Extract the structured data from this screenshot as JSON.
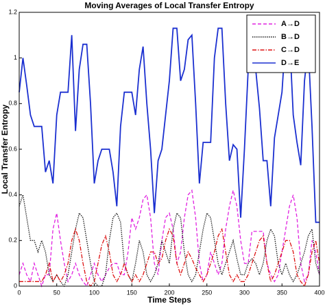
{
  "chart_data": {
    "type": "line",
    "title": "Moving Averages of Local Transfer Entropy",
    "xlabel": "Time Steps",
    "ylabel": "Local Transfer Entropy",
    "x": [
      0,
      5,
      10,
      15,
      20,
      25,
      30,
      35,
      40,
      45,
      50,
      55,
      60,
      65,
      70,
      75,
      80,
      85,
      90,
      95,
      100,
      105,
      110,
      115,
      120,
      125,
      130,
      135,
      140,
      145,
      150,
      155,
      160,
      165,
      170,
      175,
      180,
      185,
      190,
      195,
      200,
      205,
      210,
      215,
      220,
      225,
      230,
      235,
      240,
      245,
      250,
      255,
      260,
      265,
      270,
      275,
      280,
      285,
      290,
      295,
      300,
      305,
      310,
      315,
      320,
      325,
      330,
      335,
      340,
      345,
      350,
      355,
      360,
      365,
      370,
      375,
      380,
      385,
      390,
      395,
      400
    ],
    "series": [
      {
        "name": "A→D",
        "color": "#e020e0",
        "dash": "dashed",
        "values": [
          0.05,
          0.1,
          0.05,
          0.02,
          0.1,
          0.05,
          0,
          0.05,
          0.05,
          0.25,
          0.32,
          0.2,
          0.1,
          0.02,
          0.05,
          0.1,
          0.05,
          0.02,
          0,
          0.05,
          0.1,
          0.05,
          0.02,
          0.05,
          0.08,
          0.1,
          0.1,
          0.05,
          0.05,
          0.15,
          0.3,
          0.25,
          0.3,
          0.38,
          0.4,
          0.3,
          0.1,
          0.05,
          0.2,
          0.3,
          0.32,
          0.25,
          0.1,
          0.15,
          0.3,
          0.4,
          0.42,
          0.3,
          0.1,
          0.02,
          0.05,
          0.15,
          0.1,
          0.05,
          0.1,
          0.25,
          0.35,
          0.42,
          0.35,
          0.2,
          0.1,
          0.1,
          0.24,
          0.24,
          0.24,
          0.24,
          0.1,
          0.05,
          0.02,
          0.05,
          0.15,
          0.25,
          0.35,
          0.4,
          0.3,
          0.1,
          0.02,
          0.05,
          0.2,
          0.15,
          0.05
        ]
      },
      {
        "name": "B→D",
        "color": "#111111",
        "dash": "dotted",
        "values": [
          0.35,
          0.4,
          0.3,
          0.2,
          0.2,
          0.15,
          0.2,
          0.15,
          0.05,
          0.02,
          0.05,
          0.02,
          0,
          0.05,
          0.15,
          0.25,
          0.32,
          0.3,
          0.2,
          0.1,
          0.02,
          0,
          0,
          0.05,
          0.2,
          0.3,
          0.32,
          0.28,
          0.1,
          0.05,
          0.02,
          0.1,
          0.2,
          0.15,
          0.05,
          0.02,
          0.05,
          0.1,
          0.2,
          0.15,
          0.1,
          0.25,
          0.32,
          0.3,
          0.15,
          0.05,
          0.02,
          0.05,
          0.15,
          0.25,
          0.32,
          0.3,
          0.2,
          0.1,
          0.05,
          0.1,
          0.15,
          0.2,
          0.12,
          0.05,
          0.05,
          0.1,
          0.12,
          0.1,
          0.05,
          0.1,
          0.2,
          0.25,
          0.22,
          0.1,
          0.05,
          0.1,
          0.05,
          0.02,
          0.05,
          0.1,
          0.15,
          0.22,
          0.25,
          0.1,
          0.05
        ]
      },
      {
        "name": "C→D",
        "color": "#dd1111",
        "dash": "dashdot",
        "values": [
          0.02,
          0.02,
          0.02,
          0.02,
          0.02,
          0.02,
          0.02,
          0.05,
          0.1,
          0.02,
          0.05,
          0.02,
          0.05,
          0.1,
          0.2,
          0.25,
          0.2,
          0.1,
          0.02,
          0,
          0.02,
          0.1,
          0.18,
          0.22,
          0.15,
          0.05,
          0.02,
          0.05,
          0.1,
          0.05,
          0.02,
          0.05,
          0.02,
          0.05,
          0.1,
          0.15,
          0.15,
          0.1,
          0.12,
          0.2,
          0.25,
          0.22,
          0.1,
          0.05,
          0.1,
          0.15,
          0.12,
          0.08,
          0.05,
          0.02,
          0.05,
          0.1,
          0.15,
          0.22,
          0.25,
          0.15,
          0.05,
          0.02,
          0.05,
          0.02,
          0.02,
          0.05,
          0.1,
          0.15,
          0.2,
          0.22,
          0.1,
          0.02,
          0.05,
          0.1,
          0.15,
          0.2,
          0.2,
          0.15,
          0.05,
          0.02,
          0,
          0.05,
          0.15,
          0.2,
          0.1
        ]
      },
      {
        "name": "D→E",
        "color": "#1a2fd0",
        "dash": "solid",
        "values": [
          0.85,
          1.0,
          0.88,
          0.75,
          0.7,
          0.7,
          0.7,
          0.5,
          0.55,
          0.45,
          0.75,
          0.85,
          0.85,
          0.85,
          1.1,
          0.68,
          0.95,
          1.06,
          1.06,
          0.8,
          0.45,
          0.55,
          0.6,
          0.6,
          0.6,
          0.5,
          0.35,
          0.7,
          0.85,
          0.85,
          0.85,
          0.75,
          0.95,
          1.05,
          0.8,
          0.6,
          0.32,
          0.55,
          0.6,
          0.75,
          0.9,
          1.13,
          1.13,
          0.9,
          0.95,
          1.08,
          1.1,
          0.8,
          0.45,
          0.63,
          0.63,
          0.63,
          1.0,
          1.13,
          1.13,
          0.8,
          0.55,
          0.62,
          0.6,
          0.3,
          0.6,
          0.95,
          0.95,
          0.95,
          0.78,
          0.55,
          0.55,
          0.35,
          0.65,
          0.75,
          0.85,
          1.1,
          1.1,
          0.75,
          0.63,
          0.53,
          0.9,
          1.05,
          0.7,
          0.28,
          0.28
        ]
      }
    ],
    "xlim": [
      0,
      400
    ],
    "xticks": [
      0,
      50,
      100,
      150,
      200,
      250,
      300,
      350,
      400
    ],
    "ylim": [
      0,
      1.2
    ],
    "yticks": [
      0,
      0.2,
      0.4,
      0.6,
      0.8,
      1,
      1.2
    ],
    "legend": "upper right"
  }
}
